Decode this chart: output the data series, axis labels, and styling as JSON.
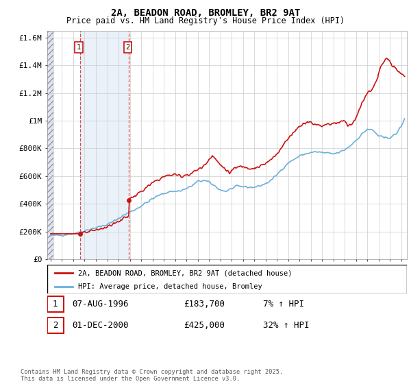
{
  "title": "2A, BEADON ROAD, BROMLEY, BR2 9AT",
  "subtitle": "Price paid vs. HM Land Registry's House Price Index (HPI)",
  "ylim": [
    0,
    1650000
  ],
  "yticks": [
    0,
    200000,
    400000,
    600000,
    800000,
    1000000,
    1200000,
    1400000,
    1600000
  ],
  "ytick_labels": [
    "£0",
    "£200K",
    "£400K",
    "£600K",
    "£800K",
    "£1M",
    "£1.2M",
    "£1.4M",
    "£1.6M"
  ],
  "xlim_start": 1993.7,
  "xlim_end": 2025.5,
  "hpi_color": "#6ab0d8",
  "price_color": "#cc1111",
  "annotation_box_color": "#cc1111",
  "purchase_dates": [
    1996.58,
    2000.92
  ],
  "purchase_prices": [
    183700,
    425000
  ],
  "purchase_labels": [
    "1",
    "2"
  ],
  "annotation1_date": "07-AUG-1996",
  "annotation1_price": "£183,700",
  "annotation1_hpi": "7% ↑ HPI",
  "annotation2_date": "01-DEC-2000",
  "annotation2_price": "£425,000",
  "annotation2_hpi": "32% ↑ HPI",
  "legend_label_price": "2A, BEADON ROAD, BROMLEY, BR2 9AT (detached house)",
  "legend_label_hpi": "HPI: Average price, detached house, Bromley",
  "footer": "Contains HM Land Registry data © Crown copyright and database right 2025.\nThis data is licensed under the Open Government Licence v3.0.",
  "hatch_end": 1994.25
}
